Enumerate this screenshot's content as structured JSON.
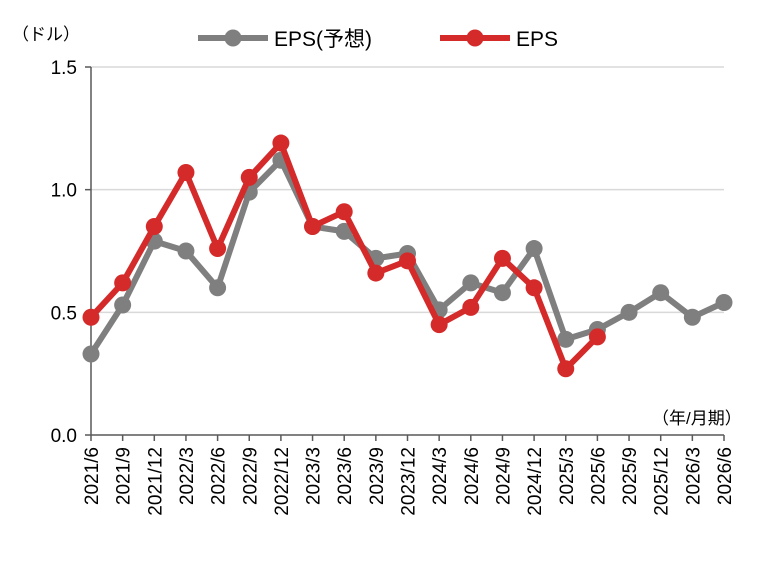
{
  "chart_data": {
    "type": "line",
    "y_unit_label": "（ドル）",
    "x_unit_label": "（年/月期）",
    "categories": [
      "2021/6",
      "2021/9",
      "2021/12",
      "2022/3",
      "2022/6",
      "2022/9",
      "2022/12",
      "2023/3",
      "2023/6",
      "2023/9",
      "2023/12",
      "2024/3",
      "2024/6",
      "2024/9",
      "2024/12",
      "2025/3",
      "2025/6",
      "2025/9",
      "2025/12",
      "2026/3",
      "2026/6"
    ],
    "ylim": [
      0.0,
      1.5
    ],
    "yticks": [
      "0.0",
      "0.5",
      "1.0",
      "1.5"
    ],
    "grid": true,
    "legend_placement": "top",
    "series": [
      {
        "name": "EPS(予想)",
        "color": "#7f7f7f",
        "values": [
          0.33,
          0.53,
          0.79,
          0.75,
          0.6,
          0.99,
          1.12,
          0.85,
          0.83,
          0.72,
          0.74,
          0.51,
          0.62,
          0.58,
          0.76,
          0.39,
          0.43,
          0.5,
          0.58,
          0.48,
          0.54
        ]
      },
      {
        "name": "EPS",
        "color": "#d42a2a",
        "values": [
          0.48,
          0.62,
          0.85,
          1.07,
          0.76,
          1.05,
          1.19,
          0.85,
          0.91,
          0.66,
          0.71,
          0.45,
          0.52,
          0.72,
          0.6,
          0.27,
          0.4,
          null,
          null,
          null,
          null
        ]
      }
    ]
  }
}
